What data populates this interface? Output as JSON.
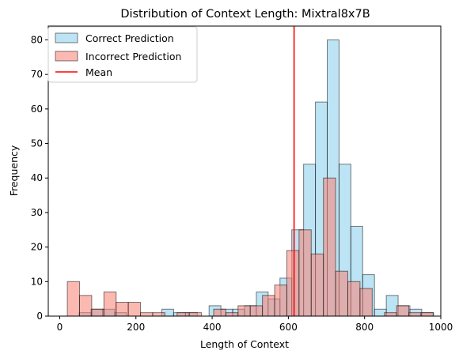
{
  "chart_data": {
    "type": "bar",
    "title": "Distribution of Context Length: Mixtral8x7B",
    "xlabel": "Length of Context",
    "ylabel": "Frequency",
    "xlim": [
      -30,
      1000
    ],
    "ylim": [
      0,
      84
    ],
    "xticks": [
      0,
      200,
      400,
      600,
      800,
      1000
    ],
    "yticks": [
      0,
      10,
      20,
      30,
      40,
      50,
      60,
      70,
      80
    ],
    "grid": false,
    "legend_position": "top-left",
    "series": [
      {
        "name": "Correct Prediction",
        "color": "#87CEEB",
        "bin_width": 31,
        "bins": [
          {
            "x": 20,
            "y": 0
          },
          {
            "x": 51,
            "y": 1
          },
          {
            "x": 82,
            "y": 2
          },
          {
            "x": 113,
            "y": 2
          },
          {
            "x": 144,
            "y": 1
          },
          {
            "x": 175,
            "y": 0
          },
          {
            "x": 206,
            "y": 0
          },
          {
            "x": 237,
            "y": 0
          },
          {
            "x": 268,
            "y": 2
          },
          {
            "x": 299,
            "y": 1
          },
          {
            "x": 330,
            "y": 1
          },
          {
            "x": 361,
            "y": 0
          },
          {
            "x": 392,
            "y": 3
          },
          {
            "x": 423,
            "y": 2
          },
          {
            "x": 454,
            "y": 2
          },
          {
            "x": 485,
            "y": 3
          },
          {
            "x": 516,
            "y": 7
          },
          {
            "x": 547,
            "y": 5
          },
          {
            "x": 578,
            "y": 11
          },
          {
            "x": 609,
            "y": 25
          },
          {
            "x": 640,
            "y": 44
          },
          {
            "x": 671,
            "y": 62
          },
          {
            "x": 702,
            "y": 80
          },
          {
            "x": 733,
            "y": 44
          },
          {
            "x": 764,
            "y": 26
          },
          {
            "x": 795,
            "y": 12
          },
          {
            "x": 826,
            "y": 2
          },
          {
            "x": 857,
            "y": 6
          },
          {
            "x": 888,
            "y": 3
          },
          {
            "x": 919,
            "y": 2
          },
          {
            "x": 950,
            "y": 1
          }
        ]
      },
      {
        "name": "Incorrect Prediction",
        "color": "#FA8072",
        "bin_width": 32,
        "bins": [
          {
            "x": 20,
            "y": 10
          },
          {
            "x": 52,
            "y": 6
          },
          {
            "x": 84,
            "y": 2
          },
          {
            "x": 116,
            "y": 7
          },
          {
            "x": 148,
            "y": 4
          },
          {
            "x": 180,
            "y": 4
          },
          {
            "x": 212,
            "y": 1
          },
          {
            "x": 244,
            "y": 1
          },
          {
            "x": 276,
            "y": 0
          },
          {
            "x": 308,
            "y": 1
          },
          {
            "x": 340,
            "y": 1
          },
          {
            "x": 372,
            "y": 0
          },
          {
            "x": 404,
            "y": 2
          },
          {
            "x": 436,
            "y": 1
          },
          {
            "x": 468,
            "y": 3
          },
          {
            "x": 500,
            "y": 3
          },
          {
            "x": 532,
            "y": 6
          },
          {
            "x": 564,
            "y": 9
          },
          {
            "x": 596,
            "y": 19
          },
          {
            "x": 628,
            "y": 25
          },
          {
            "x": 660,
            "y": 18
          },
          {
            "x": 692,
            "y": 40
          },
          {
            "x": 724,
            "y": 13
          },
          {
            "x": 756,
            "y": 10
          },
          {
            "x": 788,
            "y": 8
          },
          {
            "x": 820,
            "y": 0
          },
          {
            "x": 852,
            "y": 1
          },
          {
            "x": 884,
            "y": 3
          },
          {
            "x": 916,
            "y": 1
          },
          {
            "x": 948,
            "y": 1
          }
        ]
      }
    ],
    "mean_line": {
      "name": "Mean",
      "x": 615,
      "color": "#FF0000"
    }
  }
}
